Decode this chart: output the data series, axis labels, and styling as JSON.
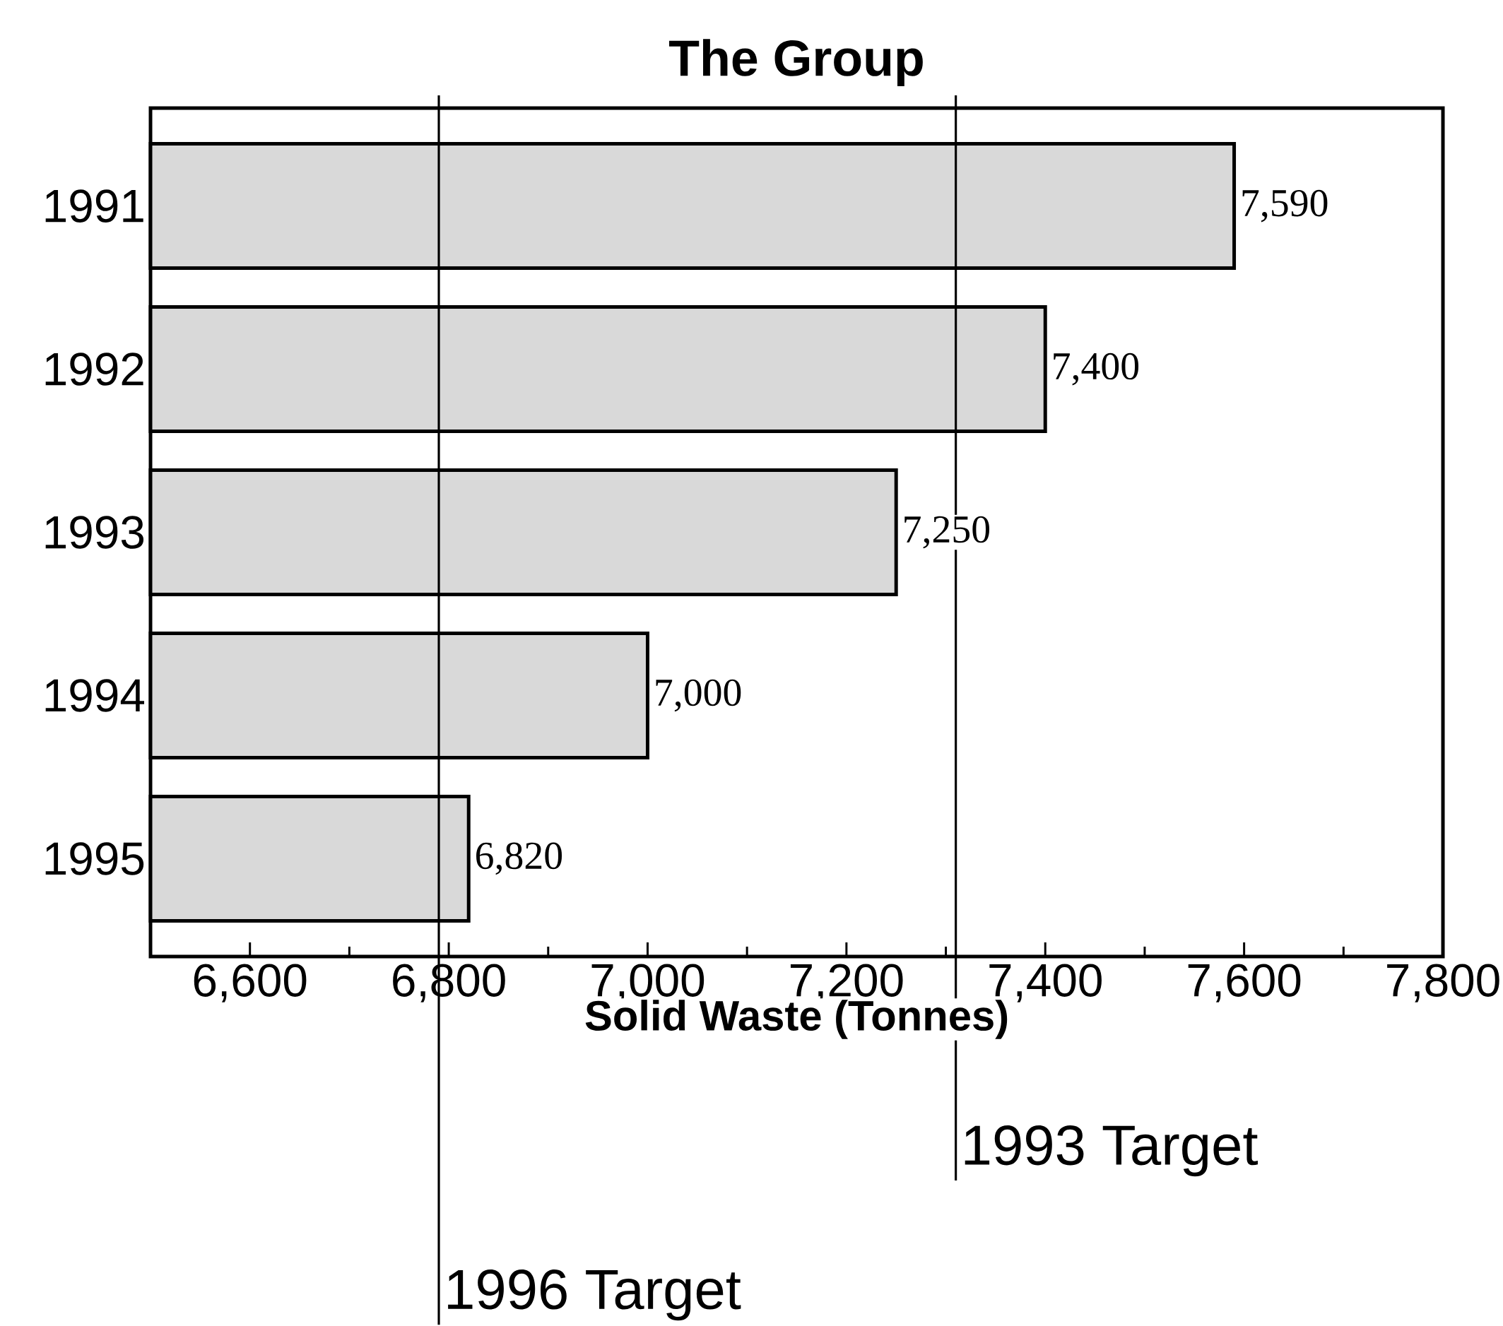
{
  "chart_data": {
    "type": "bar",
    "orientation": "horizontal",
    "title": "The Group",
    "xlabel": "Solid Waste (Tonnes)",
    "categories": [
      "1991",
      "1992",
      "1993",
      "1994",
      "1995"
    ],
    "values": [
      7590,
      7400,
      7250,
      7000,
      6820
    ],
    "value_labels": [
      "7,590",
      "7,400",
      "7,250",
      "7,000",
      "6,820"
    ],
    "color": "#d9d9d9",
    "xlim": [
      6500,
      7800
    ],
    "xticks": [
      {
        "value": 6600,
        "label": "6,600"
      },
      {
        "value": 6800,
        "label": "6,800"
      },
      {
        "value": 7000,
        "label": "7,000"
      },
      {
        "value": 7200,
        "label": "7,200"
      },
      {
        "value": 7400,
        "label": "7,400"
      },
      {
        "value": 7600,
        "label": "7,600"
      },
      {
        "value": 7800,
        "label": "7,800"
      }
    ],
    "ref_lines": [
      {
        "axis": "x",
        "value": 7310,
        "label": "1993 Target"
      },
      {
        "axis": "x",
        "value": 6790,
        "label": "1996 Target"
      }
    ]
  }
}
